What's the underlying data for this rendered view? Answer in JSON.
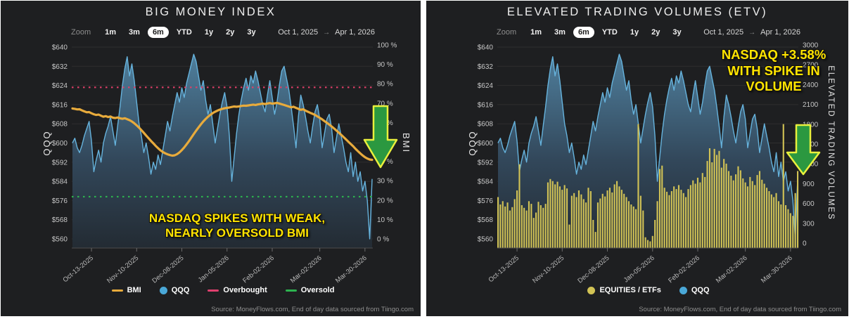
{
  "source_note": "Source: MoneyFlows.com, End of day data sourced from Tiingo.com",
  "toolbar": {
    "zoom_label": "Zoom",
    "ranges": [
      "1m",
      "3m",
      "6m",
      "YTD",
      "1y",
      "2y",
      "3y"
    ],
    "selected_range": "6m",
    "date_from": "Oct 1, 2025",
    "date_to": "Apr 1, 2026",
    "arrow": "→"
  },
  "colors": {
    "panel_bg": "#1e1f21",
    "grid": "#2f2f2f",
    "axis_line": "#4d4d4d",
    "axis_text": "#c6c6c6",
    "qqq_line": "#66b3dd",
    "area_top": "#4f7f9d",
    "area_mid": "#32475a",
    "area_bottom": "#232b33",
    "bmi_line": "#e8ab3c",
    "overbought": "#dd3f68",
    "oversold": "#2db34f",
    "volume_bar": "#d2c355",
    "annotation_yellow": "#ffe400",
    "arrow_green": "#2b9840",
    "arrow_border": "#e9f03c"
  },
  "chart_data": [
    {
      "type": "area",
      "title": "BIG MONEY INDEX",
      "x_tick_labels": [
        "Oct-13-2025",
        "Nov-10-2025",
        "Dec-08-2025",
        "Jan-05-2026",
        "Feb-02-2026",
        "Mar-02-2026",
        "Mar-30-2026"
      ],
      "x_tick_indices": [
        8,
        27,
        46,
        65,
        84,
        104,
        123
      ],
      "left_axis": {
        "title": "QQQ",
        "min": 560,
        "max": 640,
        "ticks": [
          "$640",
          "$632",
          "$624",
          "$616",
          "$608",
          "$600",
          "$592",
          "$584",
          "$576",
          "$568",
          "$560"
        ]
      },
      "right_axis": {
        "title": "BMI",
        "min": 0,
        "max": 100,
        "ticks": [
          "100 %",
          "90 %",
          "80 %",
          "70 %",
          "60 %",
          "50 %",
          "40 %",
          "30 %",
          "20 %",
          "10 %",
          "0 %"
        ]
      },
      "series": [
        {
          "name": "QQQ",
          "type": "area",
          "axis": "left",
          "color": "#66b3dd",
          "values": [
            600,
            602,
            598,
            596,
            599,
            603,
            606,
            609,
            601,
            588,
            593,
            597,
            592,
            600,
            604,
            607,
            611,
            605,
            599,
            607,
            615,
            624,
            631,
            636,
            628,
            633,
            626,
            617,
            608,
            603,
            596,
            600,
            594,
            587,
            592,
            589,
            595,
            591,
            597,
            603,
            609,
            605,
            611,
            616,
            621,
            617,
            623,
            619,
            625,
            629,
            633,
            637,
            634,
            628,
            622,
            626,
            618,
            612,
            616,
            608,
            600,
            606,
            612,
            617,
            621,
            615,
            603,
            584,
            594,
            604,
            612,
            618,
            623,
            627,
            622,
            628,
            625,
            630,
            626,
            621,
            616,
            613,
            620,
            626,
            619,
            612,
            617,
            624,
            630,
            632,
            627,
            622,
            615,
            607,
            598,
            611,
            620,
            616,
            611,
            605,
            600,
            607,
            613,
            616,
            610,
            598,
            604,
            610,
            612,
            606,
            596,
            602,
            608,
            603,
            598,
            592,
            588,
            596,
            586,
            592,
            584,
            588,
            580,
            584,
            576,
            560,
            585
          ]
        },
        {
          "name": "BMI",
          "type": "line",
          "axis": "right",
          "color": "#e8ab3c",
          "values": [
            68.0,
            67.8,
            67.5,
            67.6,
            67.0,
            66.5,
            66.0,
            66.1,
            65.5,
            65.0,
            64.6,
            64.8,
            64.2,
            63.7,
            64.0,
            63.5,
            63.8,
            63.2,
            63.0,
            63.3,
            62.9,
            62.6,
            62.9,
            62.4,
            61.9,
            61.2,
            60.3,
            59.2,
            58.0,
            56.7,
            55.3,
            53.9,
            52.5,
            51.1,
            49.8,
            48.5,
            47.3,
            46.2,
            45.3,
            44.6,
            44.1,
            43.7,
            43.4,
            43.6,
            44.2,
            45.1,
            46.3,
            47.7,
            49.3,
            51.0,
            52.8,
            54.6,
            56.4,
            58.1,
            59.7,
            61.2,
            62.5,
            63.7,
            64.7,
            65.6,
            66.3,
            66.9,
            67.4,
            67.8,
            68.1,
            68.3,
            68.5,
            68.8,
            69.0,
            68.9,
            69.1,
            69.3,
            69.5,
            69.4,
            69.6,
            69.8,
            70.0,
            69.8,
            70.1,
            70.3,
            70.5,
            70.3,
            70.6,
            70.8,
            70.5,
            70.7,
            70.9,
            70.6,
            70.2,
            69.8,
            69.4,
            69.0,
            68.6,
            68.9,
            68.3,
            67.8,
            67.3,
            67.6,
            66.9,
            66.3,
            65.7,
            65.2,
            64.6,
            63.9,
            63.1,
            62.3,
            61.4,
            60.5,
            59.6,
            58.6,
            57.6,
            56.5,
            55.4,
            54.3,
            53.1,
            51.9,
            50.7,
            49.5,
            48.3,
            47.0,
            45.8,
            44.6,
            43.5,
            42.6,
            41.9,
            41.4,
            41.2
          ]
        },
        {
          "name": "Overbought",
          "type": "threshold",
          "axis": "right",
          "color": "#dd3f68",
          "value": 79
        },
        {
          "name": "Oversold",
          "type": "threshold",
          "axis": "right",
          "color": "#2db34f",
          "value": 22
        }
      ],
      "annotation": {
        "lines": [
          "NASDAQ SPIKES WITH WEAK,",
          "NEARLY OVERSOLD BMI"
        ],
        "arrow": {
          "x": 540,
          "top": 150,
          "neck": 198,
          "tip": 237
        }
      },
      "legend": [
        {
          "label": "BMI",
          "color": "#e8ab3c",
          "marker": "line"
        },
        {
          "label": "QQQ",
          "color": "#4aa8d8",
          "marker": "dot"
        },
        {
          "label": "Overbought",
          "color": "#e0406e",
          "marker": "line"
        },
        {
          "label": "Oversold",
          "color": "#2db34f",
          "marker": "line"
        }
      ]
    },
    {
      "type": "area+bar",
      "title": "ELEVATED TRADING VOLUMES (ETV)",
      "x_tick_labels": [
        "Oct-13-2025",
        "Nov-10-2025",
        "Dec-08-2025",
        "Jan-05-2026",
        "Feb-02-2026",
        "Mar-02-2026",
        "Mar-30-2026"
      ],
      "x_tick_indices": [
        8,
        27,
        46,
        65,
        84,
        104,
        123
      ],
      "left_axis": {
        "title": "QQQ",
        "min": 560,
        "max": 640,
        "ticks": [
          "$640",
          "$632",
          "$624",
          "$616",
          "$608",
          "$600",
          "$592",
          "$584",
          "$576",
          "$568",
          "$560"
        ]
      },
      "right_axis": {
        "title": "ELEVATED TRADING VOLUMES",
        "min": 0,
        "max": 3000,
        "ticks": [
          "3000",
          "2700",
          "2400",
          "2100",
          "1800",
          "1500",
          "1200",
          "900",
          "600",
          "300",
          "0"
        ]
      },
      "series": [
        {
          "name": "QQQ",
          "type": "area",
          "axis": "left",
          "color": "#66b3dd",
          "values": [
            600,
            602,
            598,
            596,
            599,
            603,
            606,
            609,
            601,
            588,
            593,
            597,
            592,
            600,
            604,
            607,
            611,
            605,
            599,
            607,
            615,
            624,
            631,
            636,
            628,
            633,
            626,
            617,
            608,
            603,
            596,
            600,
            594,
            587,
            592,
            589,
            595,
            591,
            597,
            603,
            609,
            605,
            611,
            616,
            621,
            617,
            623,
            619,
            625,
            629,
            633,
            637,
            634,
            628,
            622,
            626,
            618,
            612,
            616,
            608,
            600,
            606,
            612,
            617,
            621,
            615,
            603,
            584,
            594,
            604,
            612,
            618,
            623,
            627,
            622,
            628,
            625,
            630,
            626,
            621,
            616,
            613,
            620,
            626,
            619,
            612,
            617,
            624,
            630,
            632,
            627,
            622,
            615,
            607,
            598,
            611,
            620,
            616,
            611,
            605,
            600,
            607,
            613,
            616,
            610,
            598,
            604,
            610,
            612,
            606,
            596,
            602,
            608,
            603,
            598,
            592,
            588,
            596,
            586,
            592,
            584,
            588,
            580,
            584,
            576,
            560,
            585
          ]
        },
        {
          "name": "EQUITIES / ETFs",
          "type": "bar",
          "axis": "right",
          "color": "#d2c355",
          "values": [
            760,
            650,
            700,
            620,
            680,
            560,
            610,
            730,
            860,
            1250,
            640,
            600,
            560,
            700,
            660,
            450,
            530,
            690,
            640,
            600,
            660,
            980,
            1030,
            1000,
            950,
            990,
            920,
            870,
            940,
            890,
            350,
            780,
            820,
            760,
            860,
            800,
            730,
            680,
            900,
            850,
            420,
            240,
            680,
            740,
            810,
            770,
            860,
            900,
            830,
            950,
            1000,
            920,
            870,
            810,
            760,
            700,
            650,
            620,
            580,
            1850,
            780,
            560,
            160,
            120,
            100,
            180,
            420,
            700,
            1180,
            1230,
            900,
            840,
            790,
            850,
            920,
            880,
            940,
            870,
            820,
            760,
            880,
            940,
            1010,
            960,
            1050,
            980,
            1120,
            1060,
            1300,
            1490,
            1280,
            1480,
            1390,
            1450,
            1200,
            1330,
            1260,
            1150,
            1080,
            1010,
            1100,
            1220,
            1160,
            1040,
            980,
            920,
            1060,
            1000,
            940,
            1090,
            1150,
            1020,
            960,
            900,
            850,
            800,
            760,
            820,
            700,
            650,
            1850,
            640,
            580,
            520,
            480,
            820,
            1150
          ]
        }
      ],
      "annotation": {
        "lines": [
          "NASDAQ +3.58%",
          "WITH SPIKE IN",
          "VOLUME"
        ],
        "arrow": {
          "x": 536,
          "top": 177,
          "neck": 216,
          "tip": 247
        }
      },
      "legend": [
        {
          "label": "EQUITIES / ETFs",
          "color": "#d2c355",
          "marker": "dot"
        },
        {
          "label": "QQQ",
          "color": "#4aa8d8",
          "marker": "dot"
        }
      ]
    }
  ]
}
